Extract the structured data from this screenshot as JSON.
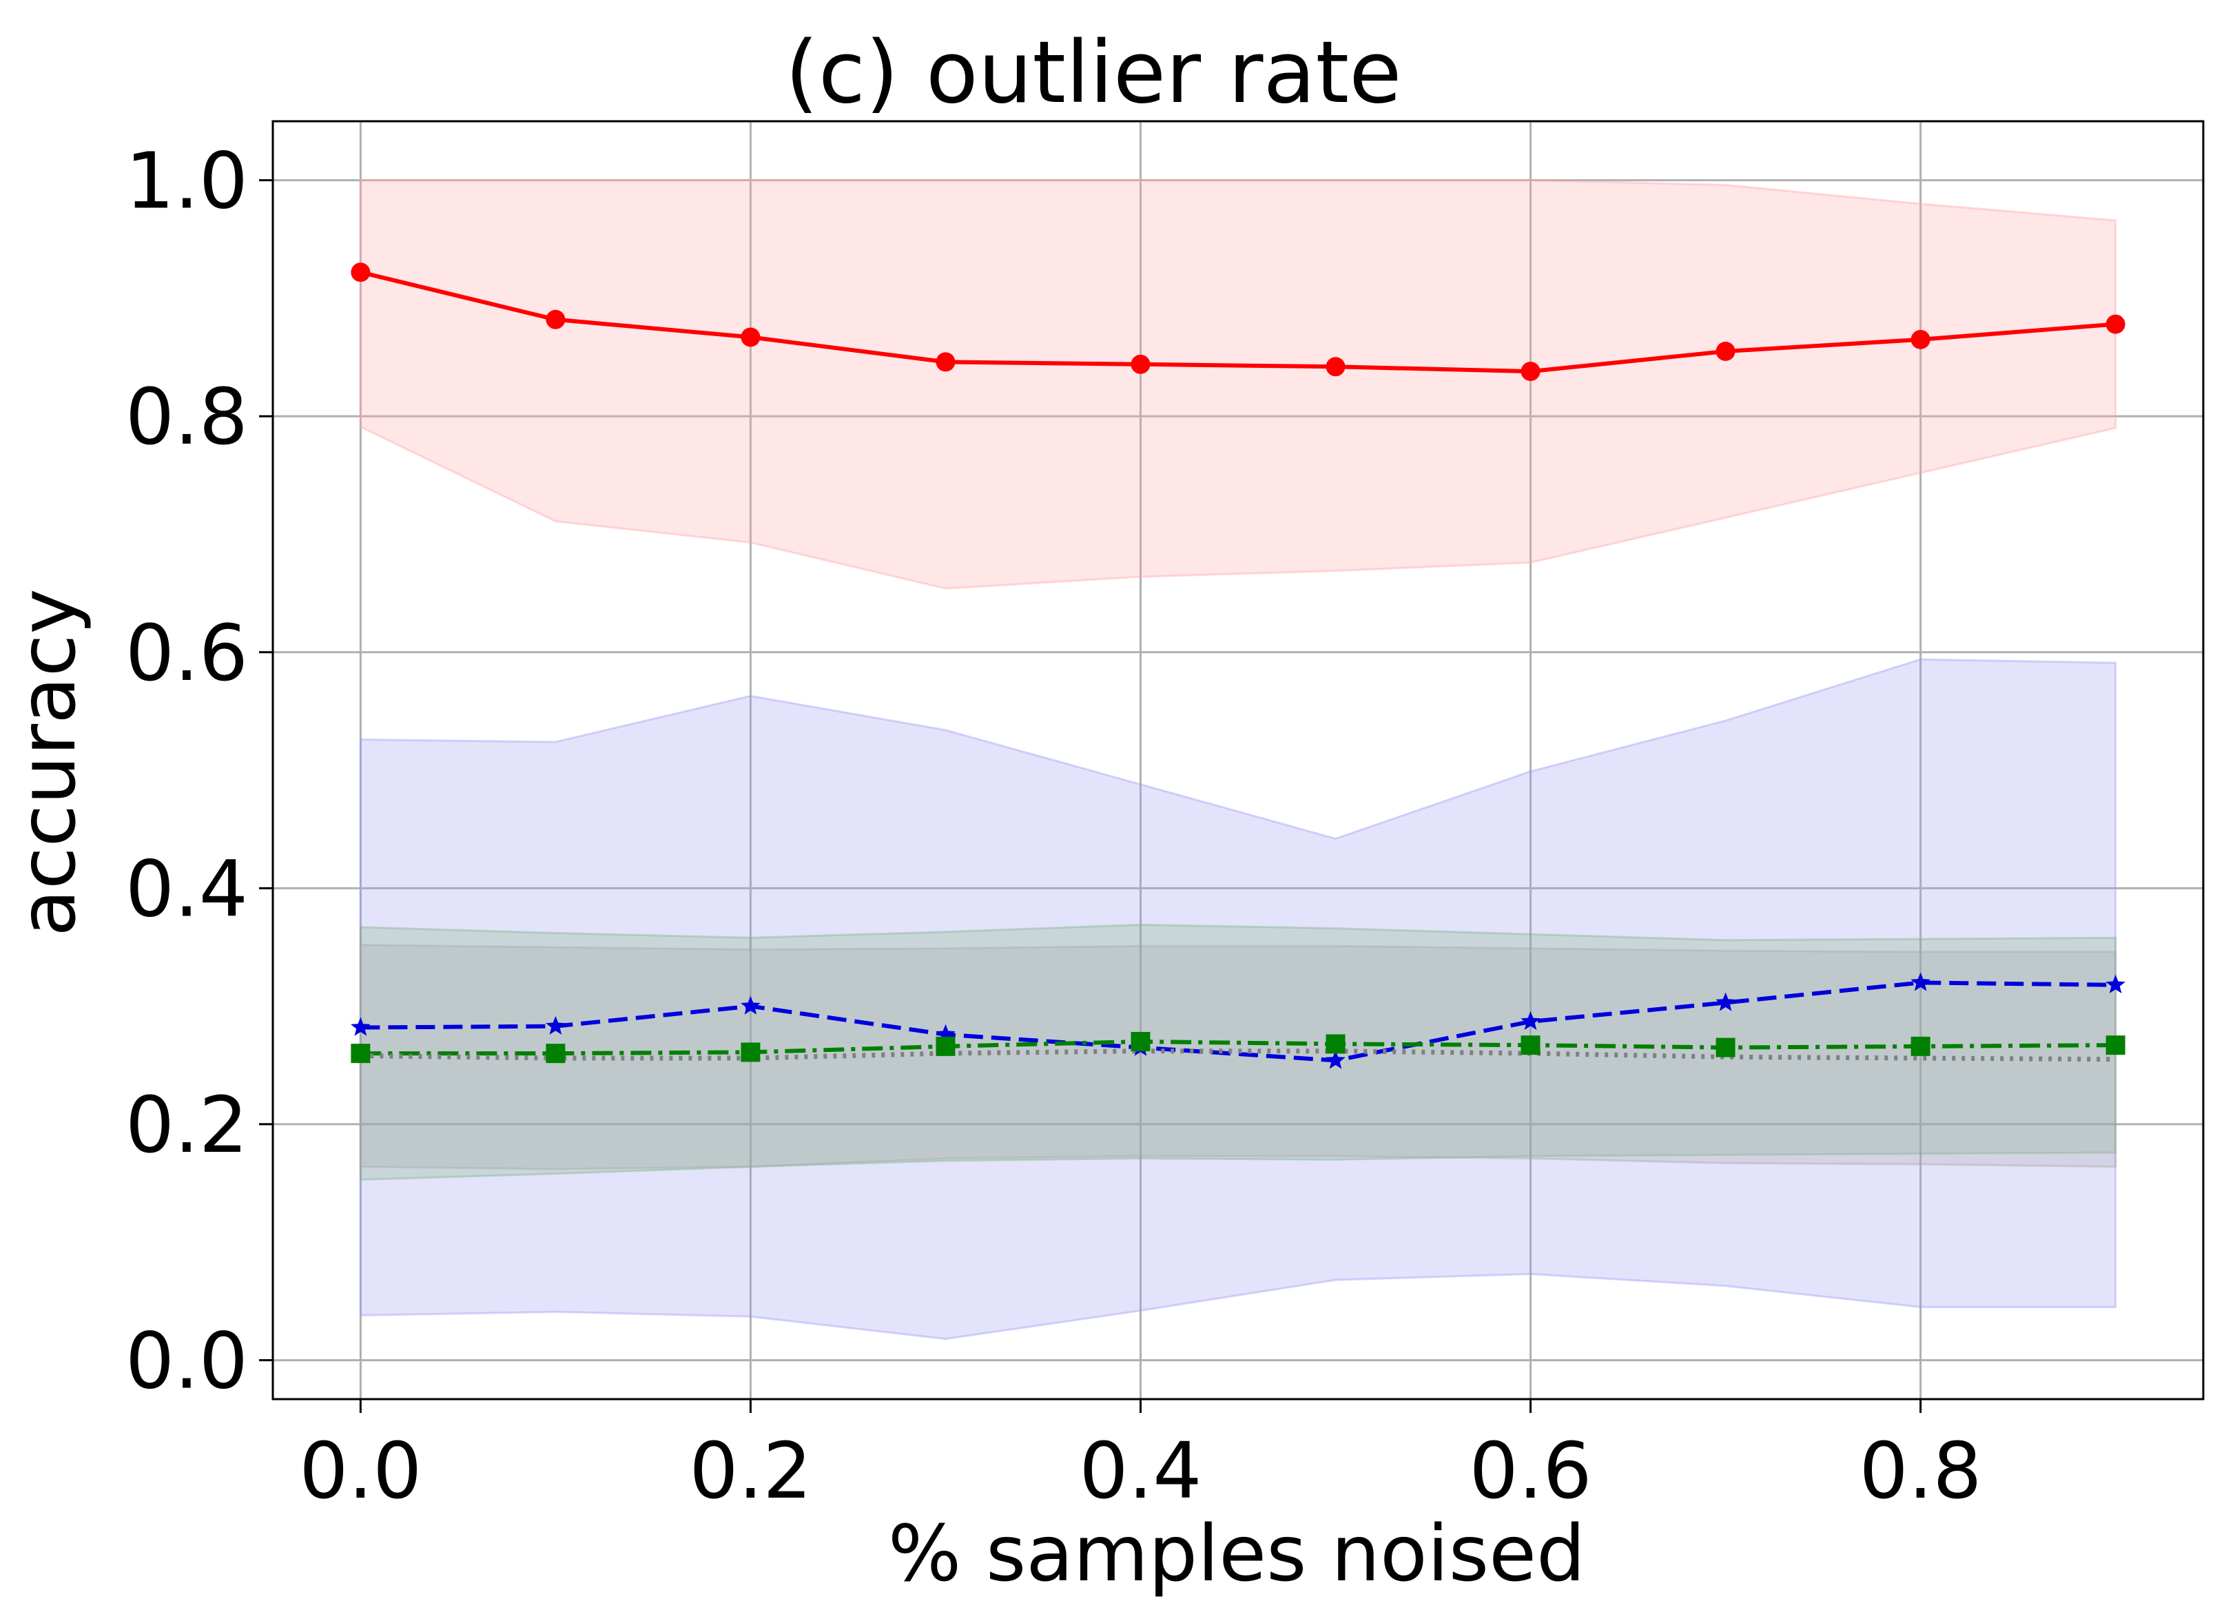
{
  "chart_data": {
    "type": "line",
    "title": "(c) outlier rate",
    "xlabel": "% samples noised",
    "ylabel": "accuracy",
    "x": [
      0.0,
      0.1,
      0.2,
      0.3,
      0.4,
      0.5,
      0.6,
      0.7,
      0.8,
      0.9
    ],
    "xlim": [
      -0.045,
      0.945
    ],
    "ylim": [
      -0.033,
      1.05
    ],
    "xticks": [
      0.0,
      0.2,
      0.4,
      0.6,
      0.8
    ],
    "xtick_labels": [
      "0.0",
      "0.2",
      "0.4",
      "0.6",
      "0.8"
    ],
    "yticks": [
      0.0,
      0.2,
      0.4,
      0.6,
      0.8,
      1.0
    ],
    "ytick_labels": [
      "0.0",
      "0.2",
      "0.4",
      "0.6",
      "0.8",
      "1.0"
    ],
    "grid": true,
    "series": [
      {
        "color": "#ff0000",
        "line_style": "solid",
        "marker": "circle",
        "values": [
          0.922,
          0.882,
          0.867,
          0.846,
          0.844,
          0.842,
          0.838,
          0.855,
          0.865,
          0.878
        ],
        "band_upper": [
          1.0,
          1.0,
          1.0,
          1.0,
          1.0,
          1.0,
          1.0,
          0.996,
          0.98,
          0.966
        ],
        "band_lower": [
          0.791,
          0.711,
          0.693,
          0.654,
          0.664,
          0.669,
          0.676,
          0.714,
          0.752,
          0.79
        ],
        "band_color": "#ffa5a8"
      },
      {
        "color": "#0000dd",
        "line_style": "dashed",
        "marker": "star",
        "values": [
          0.282,
          0.283,
          0.3,
          0.276,
          0.265,
          0.254,
          0.287,
          0.303,
          0.32,
          0.318
        ],
        "band_upper": [
          0.526,
          0.524,
          0.563,
          0.534,
          0.488,
          0.442,
          0.499,
          0.542,
          0.594,
          0.591
        ],
        "band_lower": [
          0.038,
          0.041,
          0.037,
          0.018,
          0.042,
          0.068,
          0.073,
          0.063,
          0.045,
          0.045
        ],
        "band_color": "#9a9af5"
      },
      {
        "color": "#008000",
        "line_style": "dashdot",
        "marker": "square",
        "values": [
          0.26,
          0.26,
          0.261,
          0.266,
          0.27,
          0.268,
          0.267,
          0.265,
          0.266,
          0.267
        ],
        "band_upper": [
          0.367,
          0.362,
          0.358,
          0.363,
          0.369,
          0.366,
          0.361,
          0.356,
          0.357,
          0.358
        ],
        "band_lower": [
          0.153,
          0.158,
          0.164,
          0.169,
          0.171,
          0.17,
          0.173,
          0.174,
          0.175,
          0.176
        ],
        "band_color": "#80b580"
      },
      {
        "color": "#808080",
        "line_style": "dotted",
        "marker": "none",
        "values": [
          0.258,
          0.256,
          0.256,
          0.26,
          0.262,
          0.262,
          0.26,
          0.257,
          0.256,
          0.255
        ],
        "band_upper": [
          0.352,
          0.35,
          0.348,
          0.349,
          0.351,
          0.351,
          0.349,
          0.347,
          0.346,
          0.346
        ],
        "band_lower": [
          0.164,
          0.162,
          0.164,
          0.171,
          0.173,
          0.173,
          0.171,
          0.167,
          0.166,
          0.164
        ],
        "band_color": "#a8a8a8"
      }
    ]
  }
}
